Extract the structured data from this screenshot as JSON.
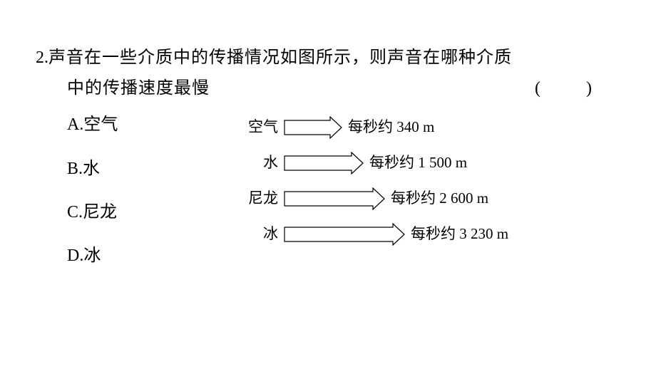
{
  "question": {
    "number": "2.",
    "line1": "声音在一些介质中的传播情况如图所示，则声音在哪种介质",
    "line2": "中的传播速度最慢",
    "paren": "(　)"
  },
  "options": [
    {
      "key": "A.",
      "text": "空气"
    },
    {
      "key": "B.",
      "text": "水"
    },
    {
      "key": "C.",
      "text": "尼龙"
    },
    {
      "key": "D.",
      "text": "冰"
    }
  ],
  "diagram": {
    "stroke_color": "#000000",
    "stroke_width": 1.2,
    "fill_color": "#ffffff",
    "arrow_height": 20,
    "label_widths": [
      50,
      50,
      50,
      50
    ],
    "rows": [
      {
        "label": "空气",
        "value_prefix": "每秒约 ",
        "value_number": "340 m",
        "arrow_length": 80
      },
      {
        "label": "水",
        "value_prefix": "每秒约 ",
        "value_number": "1 500 m",
        "arrow_length": 110
      },
      {
        "label": "尼龙",
        "value_prefix": "每秒约 ",
        "value_number": "2 600 m",
        "arrow_length": 140
      },
      {
        "label": "冰",
        "value_prefix": "每秒约 ",
        "value_number": "3 230 m",
        "arrow_length": 168
      }
    ]
  }
}
